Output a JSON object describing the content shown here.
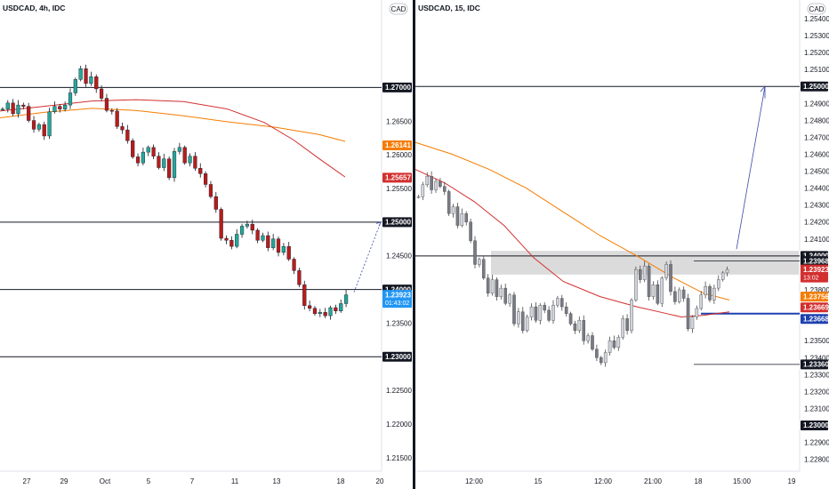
{
  "chart_data": [
    {
      "type": "candlestick",
      "title": "USDCAD, 4h, IDC",
      "currency_badge": "CAD",
      "ylim": [
        1.213,
        1.283
      ],
      "y_ticks": [
        "1.26500",
        "1.26000",
        "1.25500",
        "1.24500",
        "1.23500",
        "1.22500",
        "1.22000",
        "1.21500"
      ],
      "x_ticks": [
        "27",
        "29",
        "Oct",
        "5",
        "7",
        "11",
        "13",
        "18",
        "20"
      ],
      "horizontal_levels": [
        1.27,
        1.25,
        1.24,
        1.23
      ],
      "price_tags": [
        {
          "value": "1.27000",
          "y": 1.27,
          "color": "#131722"
        },
        {
          "value": "1.26141",
          "y": 1.2614,
          "color": "#f57c00"
        },
        {
          "value": "1.25657",
          "y": 1.2566,
          "color": "#d32f2f"
        },
        {
          "value": "1.25000",
          "y": 1.25,
          "color": "#131722"
        },
        {
          "value": "1.24000",
          "y": 1.24,
          "color": "#131722"
        },
        {
          "value": "1.23923",
          "y": 1.2392,
          "color": "#2196f3",
          "sub": "01:43:02"
        },
        {
          "value": "1.23000",
          "y": 1.23,
          "color": "#131722"
        }
      ],
      "ma_series": [
        {
          "color": "#f57c00",
          "x": [
            0,
            0.12,
            0.25,
            0.37,
            0.5,
            0.62,
            0.75,
            0.87,
            0.94
          ],
          "y": [
            1.2655,
            1.2663,
            1.2669,
            1.2666,
            1.2658,
            1.2649,
            1.2641,
            1.263,
            1.262
          ]
        },
        {
          "color": "#d32f2f",
          "x": [
            0,
            0.12,
            0.25,
            0.37,
            0.5,
            0.62,
            0.72,
            0.8,
            0.87,
            0.94
          ],
          "y": [
            1.2665,
            1.2672,
            1.268,
            1.2682,
            1.2679,
            1.2668,
            1.2648,
            1.2622,
            1.2594,
            1.2567
          ]
        }
      ],
      "candles_path": [
        1.2668,
        1.2677,
        1.2661,
        1.2674,
        1.2672,
        1.2651,
        1.2638,
        1.2645,
        1.2628,
        1.2664,
        1.2672,
        1.2668,
        1.2674,
        1.2692,
        1.2712,
        1.2728,
        1.2706,
        1.2716,
        1.2698,
        1.2684,
        1.2666,
        1.2665,
        1.2642,
        1.2637,
        1.2621,
        1.2597,
        1.2588,
        1.2604,
        1.2611,
        1.2598,
        1.2581,
        1.2594,
        1.2566,
        1.2605,
        1.2611,
        1.2588,
        1.2598,
        1.258,
        1.2572,
        1.2556,
        1.2538,
        1.2519,
        1.2476,
        1.2473,
        1.2464,
        1.2482,
        1.2494,
        1.2497,
        1.2488,
        1.2473,
        1.248,
        1.2462,
        1.2475,
        1.2455,
        1.2464,
        1.2445,
        1.2428,
        1.2407,
        1.2376,
        1.2372,
        1.2364,
        1.2366,
        1.2361,
        1.2373,
        1.2368,
        1.2379,
        1.2392
      ]
    },
    {
      "type": "candlestick",
      "title": "USDCAD, 15, IDC",
      "currency_badge": "CAD",
      "ylim": [
        1.2273,
        1.2551
      ],
      "y_ticks": [
        "1.25400",
        "1.25300",
        "1.25200",
        "1.25100",
        "1.24900",
        "1.24800",
        "1.24700",
        "1.24600",
        "1.24500",
        "1.24400",
        "1.24300",
        "1.24200",
        "1.24100",
        "1.23800",
        "1.23700",
        "1.23500",
        "1.23400",
        "1.23300",
        "1.23200",
        "1.23100",
        "1.22900",
        "1.22800"
      ],
      "x_ticks": [
        "12:00",
        "15",
        "12:00",
        "21:00",
        "18",
        "15:00",
        "19"
      ],
      "horizontal_levels": [
        1.25,
        1.24
      ],
      "short_levels": [
        1.2397,
        1.2336
      ],
      "zone": [
        1.2389,
        1.2403
      ],
      "price_tags": [
        {
          "value": "1.25000",
          "y": 1.25,
          "color": "#131722"
        },
        {
          "value": "1.24000",
          "y": 1.24,
          "color": "#131722"
        },
        {
          "value": "1.23968",
          "y": 1.2397,
          "color": "#131722"
        },
        {
          "value": "1.23923",
          "y": 1.2392,
          "color": "#d32f2f",
          "sub": "13:02"
        },
        {
          "value": "1.23756",
          "y": 1.2376,
          "color": "#f57c00"
        },
        {
          "value": "1.23669",
          "y": 1.2367,
          "color": "#d32f2f"
        },
        {
          "value": "1.23668",
          "y": 1.2366,
          "color": "#1e40af"
        },
        {
          "value": "1.23360",
          "y": 1.2336,
          "color": "#131722"
        },
        {
          "value": "1.23000",
          "y": 1.23,
          "color": "#131722"
        }
      ],
      "ma_series": [
        {
          "color": "#f57c00",
          "x": [
            0,
            0.1,
            0.2,
            0.3,
            0.4,
            0.5,
            0.6,
            0.7,
            0.78,
            0.85
          ],
          "y": [
            1.2467,
            1.246,
            1.2451,
            1.244,
            1.2426,
            1.2412,
            1.24,
            1.2387,
            1.2378,
            1.2374
          ]
        },
        {
          "color": "#d32f2f",
          "x": [
            0,
            0.08,
            0.16,
            0.24,
            0.32,
            0.4,
            0.5,
            0.6,
            0.68,
            0.72,
            0.78,
            0.85
          ],
          "y": [
            1.2451,
            1.2443,
            1.2432,
            1.2418,
            1.2399,
            1.2385,
            1.2376,
            1.237,
            1.2366,
            1.2364,
            1.2365,
            1.2367
          ]
        }
      ],
      "candles_path": [
        1.2435,
        1.2442,
        1.2447,
        1.2439,
        1.2444,
        1.2441,
        1.2438,
        1.2425,
        1.2429,
        1.2418,
        1.2425,
        1.242,
        1.2409,
        1.2395,
        1.2398,
        1.2387,
        1.2378,
        1.2386,
        1.2376,
        1.2381,
        1.2372,
        1.2377,
        1.236,
        1.2367,
        1.2356,
        1.2364,
        1.237,
        1.2362,
        1.2371,
        1.2368,
        1.2362,
        1.2371,
        1.2375,
        1.237,
        1.2366,
        1.236,
        1.2356,
        1.2362,
        1.235,
        1.2353,
        1.2345,
        1.234,
        1.2337,
        1.2343,
        1.235,
        1.2346,
        1.2352,
        1.2363,
        1.2356,
        1.2374,
        1.2392,
        1.2386,
        1.2394,
        1.2376,
        1.2383,
        1.2372,
        1.2387,
        1.2395,
        1.2379,
        1.2373,
        1.238,
        1.2375,
        1.2357,
        1.2364,
        1.2369,
        1.2377,
        1.2382,
        1.2374,
        1.2381,
        1.2386,
        1.239,
        1.2392
      ]
    }
  ]
}
